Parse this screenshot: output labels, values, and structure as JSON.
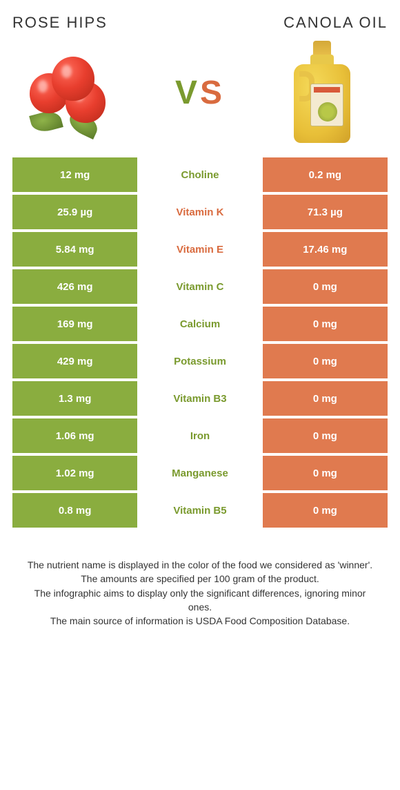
{
  "titles": {
    "left": "ROSE HIPS",
    "right": "CANOLA OIL"
  },
  "vs": {
    "v": "V",
    "s": "S"
  },
  "colors": {
    "left_bg": "#8aad3f",
    "right_bg": "#e07a4f",
    "green_text": "#7a9a2e",
    "orange_text": "#d96b3f",
    "white": "#ffffff"
  },
  "table": {
    "type": "comparison-table",
    "columns": [
      "left_value",
      "nutrient",
      "right_value",
      "winner"
    ],
    "rows": [
      {
        "left": "12 mg",
        "nutrient": "Choline",
        "right": "0.2 mg",
        "winner": "left"
      },
      {
        "left": "25.9 µg",
        "nutrient": "Vitamin K",
        "right": "71.3 µg",
        "winner": "right"
      },
      {
        "left": "5.84 mg",
        "nutrient": "Vitamin E",
        "right": "17.46 mg",
        "winner": "right"
      },
      {
        "left": "426 mg",
        "nutrient": "Vitamin C",
        "right": "0 mg",
        "winner": "left"
      },
      {
        "left": "169 mg",
        "nutrient": "Calcium",
        "right": "0 mg",
        "winner": "left"
      },
      {
        "left": "429 mg",
        "nutrient": "Potassium",
        "right": "0 mg",
        "winner": "left"
      },
      {
        "left": "1.3 mg",
        "nutrient": "Vitamin B3",
        "right": "0 mg",
        "winner": "left"
      },
      {
        "left": "1.06 mg",
        "nutrient": "Iron",
        "right": "0 mg",
        "winner": "left"
      },
      {
        "left": "1.02 mg",
        "nutrient": "Manganese",
        "right": "0 mg",
        "winner": "left"
      },
      {
        "left": "0.8 mg",
        "nutrient": "Vitamin B5",
        "right": "0 mg",
        "winner": "left"
      }
    ]
  },
  "footer": {
    "l1": "The nutrient name is displayed in the color of the food we considered as 'winner'.",
    "l2": "The amounts are specified per 100 gram of the product.",
    "l3": "The infographic aims to display only the significant differences, ignoring minor ones.",
    "l4": "The main source of information is USDA Food Composition Database."
  }
}
